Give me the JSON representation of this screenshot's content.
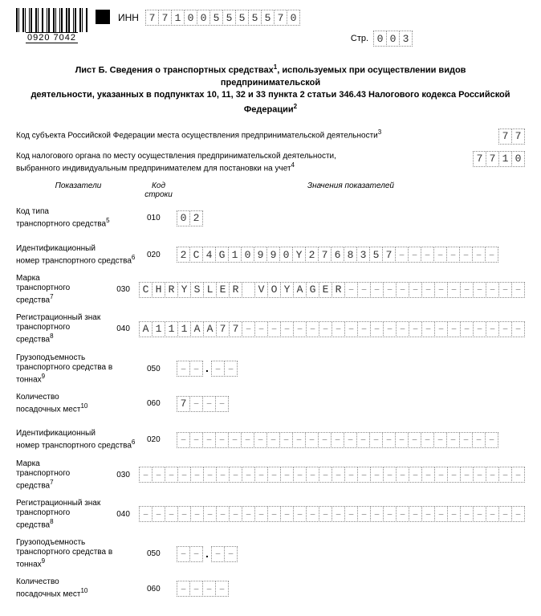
{
  "barcode_number": "0920 7042",
  "inn_label": "ИНН",
  "inn_value": "771005555570",
  "page_label": "Стр.",
  "page_value": "003",
  "title_line1": "Лист Б. Сведения о транспортных средствах",
  "title_sup1": "1",
  "title_line1b": ", используемых при осуществлении видов предпринимательской",
  "title_line2": "деятельности, указанных в подпунктах 10, 11, 32 и 33 пункта 2 статьи 346.43 Налогового кодекса Российской Федерации",
  "title_sup2": "2",
  "field1_label": "Код субъекта Российской Федерации места осуществления предпринимательской деятельности",
  "field1_sup": "3",
  "field1_value": "77",
  "field2_label_l1": "Код налогового органа по месту осуществления предпринимательской деятельности,",
  "field2_label_l2": "выбранного индивидуальным предпринимателем для постановки на учет",
  "field2_sup": "4",
  "field2_value": "7710",
  "header_indicator": "Показатели",
  "header_code_l1": "Код",
  "header_code_l2": "строки",
  "header_values": "Значения показателей",
  "rows": [
    {
      "label_l1": "Код типа",
      "label_l2": "транспортного средства",
      "sup": "5",
      "code": "010",
      "cells": 2,
      "value": "02",
      "decimal": false
    },
    {
      "label_l1": "Идентификационный",
      "label_l2": "номер транспортного средства",
      "sup": "6",
      "code": "020",
      "cells": 25,
      "value": "2C4G10990Y2768357",
      "decimal": false
    },
    {
      "label_l1": "Марка",
      "label_l2": "транспортного средства",
      "sup": "7",
      "code": "030",
      "cells": 30,
      "value": "CHRYSLER VOYAGER",
      "decimal": false
    },
    {
      "label_l1": "Регистрационный знак",
      "label_l2": "транспортного средства",
      "sup": "8",
      "code": "040",
      "cells": 30,
      "value": "А111АА77",
      "decimal": false
    },
    {
      "label_l1": "Грузоподъемность",
      "label_l2": "транспортного средства в тоннах",
      "sup": "9",
      "code": "050",
      "cells_before": 2,
      "cells_after": 2,
      "value": "",
      "decimal": true
    },
    {
      "label_l1": "Количество",
      "label_l2": "посадочных мест",
      "sup": "10",
      "code": "060",
      "cells": 4,
      "value": "7",
      "decimal": false
    },
    {
      "label_l1": "Идентификационный",
      "label_l2": "номер транспортного средства",
      "sup": "6",
      "code": "020",
      "cells": 25,
      "value": "",
      "decimal": false
    },
    {
      "label_l1": "Марка",
      "label_l2": "транспортного средства",
      "sup": "7",
      "code": "030",
      "cells": 30,
      "value": "",
      "decimal": false
    },
    {
      "label_l1": "Регистрационный знак",
      "label_l2": "транспортного средства",
      "sup": "8",
      "code": "040",
      "cells": 30,
      "value": "",
      "decimal": false
    },
    {
      "label_l1": "Грузоподъемность",
      "label_l2": "транспортного средства в тоннах",
      "sup": "9",
      "code": "050",
      "cells_before": 2,
      "cells_after": 2,
      "value": "",
      "decimal": true
    },
    {
      "label_l1": "Количество",
      "label_l2": "посадочных мест",
      "sup": "10",
      "code": "060",
      "cells": 4,
      "value": "",
      "decimal": false
    }
  ]
}
